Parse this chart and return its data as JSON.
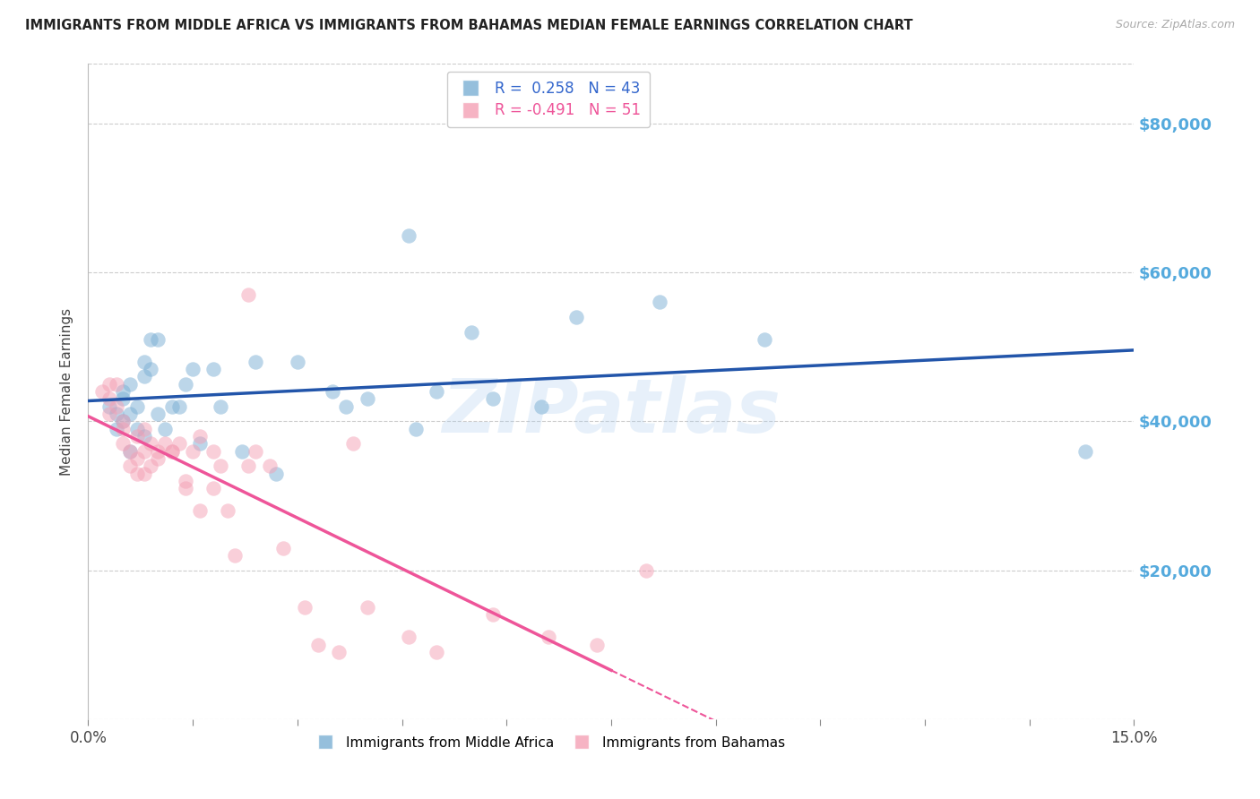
{
  "title": "IMMIGRANTS FROM MIDDLE AFRICA VS IMMIGRANTS FROM BAHAMAS MEDIAN FEMALE EARNINGS CORRELATION CHART",
  "source": "Source: ZipAtlas.com",
  "ylabel": "Median Female Earnings",
  "y_ticks": [
    0,
    20000,
    40000,
    60000,
    80000
  ],
  "y_tick_labels": [
    "",
    "$20,000",
    "$40,000",
    "$60,000",
    "$80,000"
  ],
  "xmin": 0.0,
  "xmax": 0.15,
  "ymin": 0,
  "ymax": 88000,
  "legend_blue_r": "0.258",
  "legend_blue_n": "43",
  "legend_pink_r": "-0.491",
  "legend_pink_n": "51",
  "blue_color": "#7BAFD4",
  "pink_color": "#F4A0B5",
  "trend_blue_color": "#2255AA",
  "trend_pink_color": "#EE5599",
  "watermark": "ZIPatlas",
  "blue_x": [
    0.003,
    0.004,
    0.004,
    0.005,
    0.005,
    0.005,
    0.006,
    0.006,
    0.006,
    0.007,
    0.007,
    0.008,
    0.008,
    0.008,
    0.009,
    0.009,
    0.01,
    0.01,
    0.011,
    0.012,
    0.013,
    0.014,
    0.015,
    0.016,
    0.018,
    0.019,
    0.022,
    0.024,
    0.027,
    0.03,
    0.035,
    0.037,
    0.04,
    0.046,
    0.047,
    0.05,
    0.055,
    0.058,
    0.065,
    0.07,
    0.082,
    0.097,
    0.143
  ],
  "blue_y": [
    42000,
    41000,
    39000,
    43000,
    44000,
    40000,
    41000,
    36000,
    45000,
    42000,
    39000,
    48000,
    46000,
    38000,
    47000,
    51000,
    51000,
    41000,
    39000,
    42000,
    42000,
    45000,
    47000,
    37000,
    47000,
    42000,
    36000,
    48000,
    33000,
    48000,
    44000,
    42000,
    43000,
    65000,
    39000,
    44000,
    52000,
    43000,
    42000,
    54000,
    56000,
    51000,
    36000
  ],
  "pink_x": [
    0.002,
    0.003,
    0.003,
    0.003,
    0.004,
    0.004,
    0.005,
    0.005,
    0.005,
    0.006,
    0.006,
    0.007,
    0.007,
    0.007,
    0.008,
    0.008,
    0.008,
    0.009,
    0.009,
    0.01,
    0.01,
    0.011,
    0.012,
    0.012,
    0.013,
    0.014,
    0.014,
    0.015,
    0.016,
    0.016,
    0.018,
    0.018,
    0.019,
    0.02,
    0.021,
    0.023,
    0.023,
    0.024,
    0.026,
    0.028,
    0.031,
    0.033,
    0.036,
    0.038,
    0.04,
    0.046,
    0.05,
    0.058,
    0.066,
    0.073,
    0.08
  ],
  "pink_y": [
    44000,
    43000,
    41000,
    45000,
    42000,
    45000,
    40000,
    37000,
    39000,
    34000,
    36000,
    38000,
    35000,
    33000,
    39000,
    36000,
    33000,
    37000,
    34000,
    36000,
    35000,
    37000,
    36000,
    36000,
    37000,
    31000,
    32000,
    36000,
    38000,
    28000,
    36000,
    31000,
    34000,
    28000,
    22000,
    57000,
    34000,
    36000,
    34000,
    23000,
    15000,
    10000,
    9000,
    37000,
    15000,
    11000,
    9000,
    14000,
    11000,
    10000,
    20000
  ]
}
